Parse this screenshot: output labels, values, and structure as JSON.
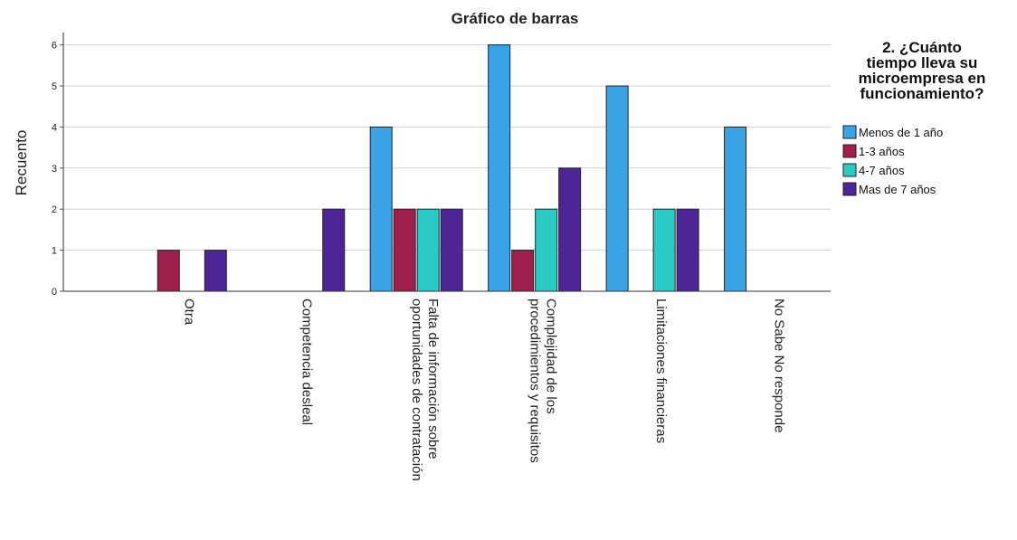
{
  "chart_data": {
    "type": "bar",
    "title": "Gráfico de barras",
    "ylabel": "Recuento",
    "xlabel": "",
    "ylim": [
      0,
      6.3
    ],
    "yticks": [
      0,
      1,
      2,
      3,
      4,
      5,
      6
    ],
    "grid": true,
    "legend_position": "right",
    "legend_title": [
      "2. ¿Cuánto",
      "tiempo lleva su",
      "microempresa en",
      "funcionamiento?"
    ],
    "categories": [
      [
        "Otra"
      ],
      [
        "Competencia desleal"
      ],
      [
        "Falta de información sobre",
        "oportunidades de contratación"
      ],
      [
        "Complejidad de los",
        "procedimientos y requisitos"
      ],
      [
        "Limitaciones financieras"
      ],
      [
        "No Sabe No responde"
      ]
    ],
    "series": [
      {
        "name": "Menos de 1 año",
        "color": "#3aa3e6",
        "values": [
          0,
          0,
          4,
          6,
          5,
          4
        ]
      },
      {
        "name": "1-3 años",
        "color": "#9e1f4b",
        "values": [
          1,
          0,
          2,
          1,
          0,
          0
        ]
      },
      {
        "name": "4-7 años",
        "color": "#2ccac4",
        "values": [
          0,
          0,
          2,
          2,
          2,
          0
        ]
      },
      {
        "name": "Mas de 7 años",
        "color": "#4d2596",
        "values": [
          1,
          2,
          2,
          3,
          2,
          0
        ]
      }
    ]
  }
}
